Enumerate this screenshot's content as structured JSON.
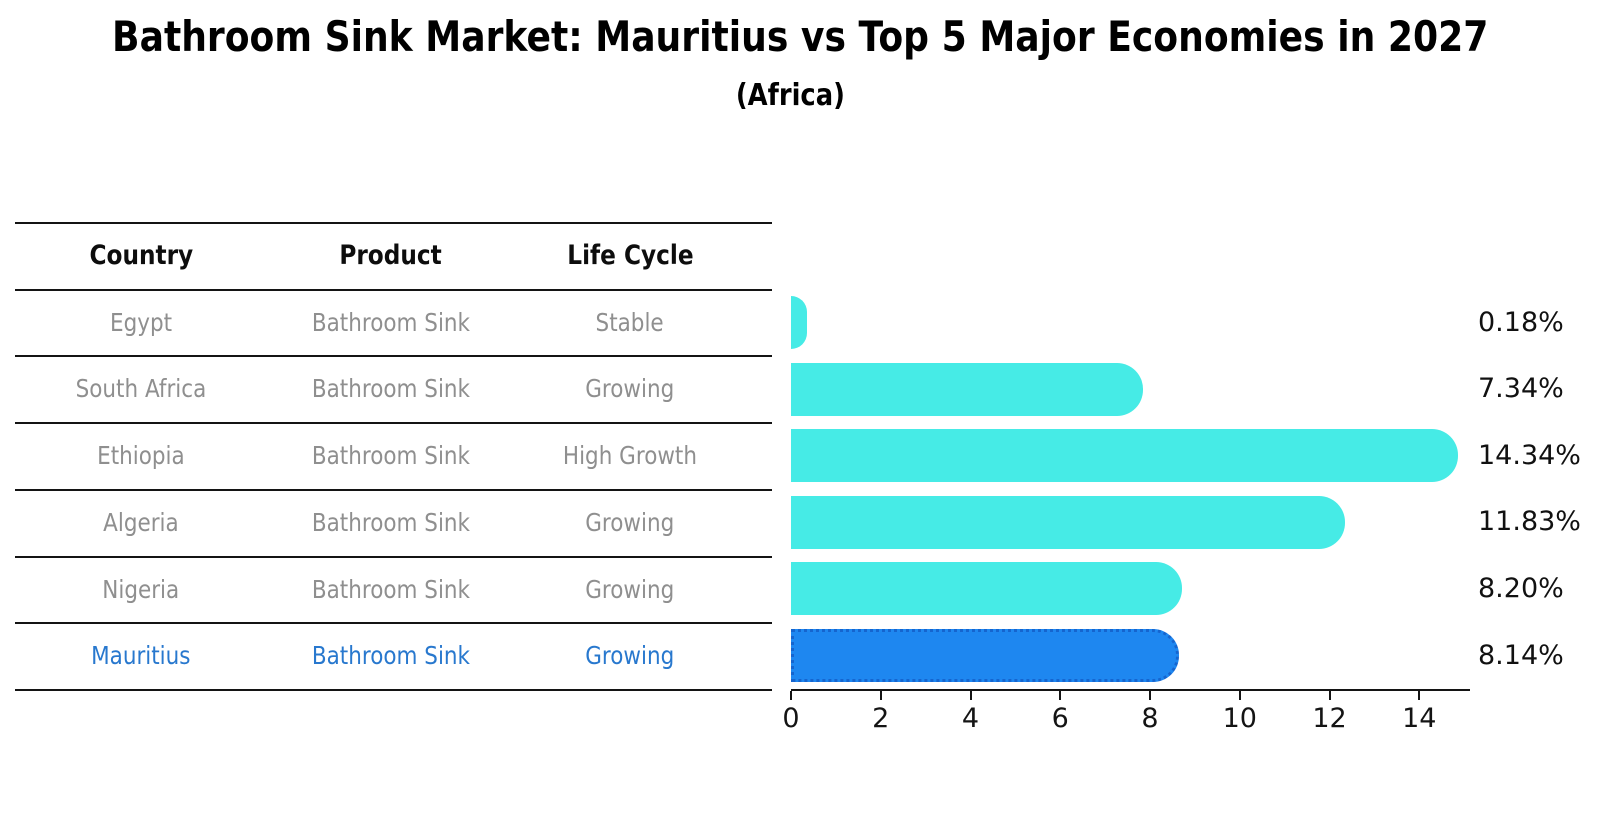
{
  "title": "Bathroom Sink Market: Mauritius vs Top 5 Major Economies in 2027",
  "subtitle": "(Africa)",
  "table": {
    "headers": [
      "Country",
      "Product",
      "Life Cycle"
    ],
    "text_color": "#8f8f8f",
    "highlight_text_color": "#2878CE",
    "rows": [
      {
        "country": "Egypt",
        "product": "Bathroom Sink",
        "life_cycle": "Stable",
        "highlight": false
      },
      {
        "country": "South Africa",
        "product": "Bathroom Sink",
        "life_cycle": "Growing",
        "highlight": false
      },
      {
        "country": "Ethiopia",
        "product": "Bathroom Sink",
        "life_cycle": "High Growth",
        "highlight": false
      },
      {
        "country": "Algeria",
        "product": "Bathroom Sink",
        "life_cycle": "Growing",
        "highlight": false
      },
      {
        "country": "Nigeria",
        "product": "Bathroom Sink",
        "life_cycle": "Growing",
        "highlight": false
      },
      {
        "country": "Mauritius",
        "product": "Bathroom Sink",
        "life_cycle": "Growing",
        "highlight": true
      }
    ]
  },
  "chart_data": {
    "type": "bar",
    "orientation": "horizontal",
    "title": "Bathroom Sink Market: Mauritius vs Top 5 Major Economies in 2027",
    "subtitle": "(Africa)",
    "categories": [
      "Egypt",
      "South Africa",
      "Ethiopia",
      "Algeria",
      "Nigeria",
      "Mauritius"
    ],
    "values": [
      0.18,
      7.34,
      14.34,
      11.83,
      8.2,
      8.14
    ],
    "value_labels": [
      "0.18%",
      "7.34%",
      "14.34%",
      "11.83%",
      "8.20%",
      "8.14%"
    ],
    "x_ticks": [
      0,
      2,
      4,
      6,
      8,
      10,
      12,
      14
    ],
    "xlim": [
      0,
      15.13
    ],
    "xlabel": "",
    "ylabel": "",
    "grid": false,
    "legend": "none",
    "bar_color": "#46EBE6",
    "highlight_category": "Mauritius",
    "highlight_color": "#1E87F0",
    "highlight_border_color": "#1565CF",
    "axis_color": "#141414"
  }
}
